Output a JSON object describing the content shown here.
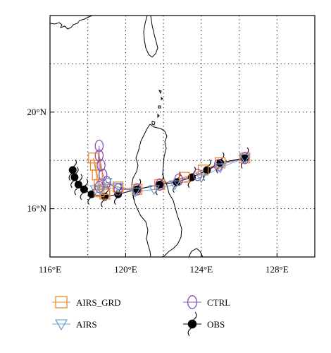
{
  "chart_data": {
    "type": "map",
    "x_ticks": [
      {
        "value": 116,
        "label": "116°E"
      },
      {
        "value": 120,
        "label": "120°E"
      },
      {
        "value": 124,
        "label": "124°E"
      },
      {
        "value": 128,
        "label": "128°E"
      }
    ],
    "y_ticks": [
      {
        "value": 20,
        "label": "20°N"
      },
      {
        "value": 16,
        "label": "16°N"
      }
    ],
    "xlim": [
      116,
      130
    ],
    "ylim": [
      14,
      24
    ],
    "grid": true,
    "legend_position": "bottom",
    "series": [
      {
        "name": "AIRS_GRD",
        "color": "#f0882a",
        "marker": "square",
        "points": [
          [
            126.3,
            18.1
          ],
          [
            125.0,
            17.9
          ],
          [
            124.1,
            17.6
          ],
          [
            123.1,
            17.3
          ],
          [
            121.8,
            17.0
          ],
          [
            120.6,
            16.8
          ],
          [
            119.6,
            16.9
          ],
          [
            118.9,
            16.8
          ],
          [
            118.6,
            17.0
          ],
          [
            118.5,
            17.4
          ],
          [
            118.4,
            17.8
          ],
          [
            118.3,
            18.1
          ],
          [
            118.6,
            16.7
          ],
          [
            118.9,
            16.6
          ]
        ]
      },
      {
        "name": "AIRS",
        "color": "#6fa3d4",
        "marker": "triangle-down",
        "points": [
          [
            126.3,
            18.1
          ],
          [
            125.0,
            17.7
          ],
          [
            124.0,
            17.3
          ],
          [
            122.6,
            17.0
          ],
          [
            121.5,
            16.8
          ],
          [
            120.5,
            16.7
          ],
          [
            119.6,
            16.9
          ],
          [
            119.0,
            17.1
          ],
          [
            118.7,
            16.8
          ],
          [
            118.4,
            16.8
          ]
        ]
      },
      {
        "name": "CTRL",
        "color": "#8c4fae",
        "marker": "ellipse",
        "points": [
          [
            126.3,
            18.1
          ],
          [
            124.9,
            17.8
          ],
          [
            123.8,
            17.4
          ],
          [
            122.8,
            17.2
          ],
          [
            121.8,
            17.0
          ],
          [
            120.6,
            16.8
          ],
          [
            119.6,
            16.8
          ],
          [
            119.0,
            17.1
          ],
          [
            118.8,
            17.4
          ],
          [
            118.7,
            17.8
          ],
          [
            118.6,
            18.2
          ],
          [
            118.6,
            18.6
          ],
          [
            118.6,
            16.9
          ]
        ]
      },
      {
        "name": "OBS",
        "color": "#000000",
        "marker": "typhoon",
        "points": [
          [
            126.3,
            18.1
          ],
          [
            125.0,
            17.9
          ],
          [
            124.3,
            17.6
          ],
          [
            123.5,
            17.3
          ],
          [
            122.7,
            17.1
          ],
          [
            121.8,
            17.0
          ],
          [
            120.6,
            16.8
          ],
          [
            119.6,
            16.6
          ],
          [
            118.9,
            16.5
          ],
          [
            118.2,
            16.6
          ],
          [
            117.8,
            16.8
          ],
          [
            117.5,
            17.0
          ],
          [
            117.3,
            17.3
          ],
          [
            117.2,
            17.6
          ]
        ]
      }
    ]
  }
}
